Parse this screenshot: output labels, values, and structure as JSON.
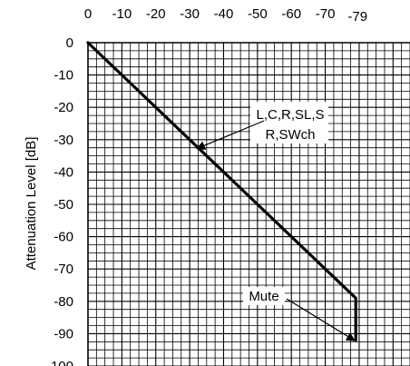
{
  "chart_data": {
    "type": "line",
    "title": "",
    "xlabel": "",
    "ylabel": "Attenuation Level [dB]",
    "x_ticks": [
      "0",
      "-10",
      "-20",
      "-30",
      "-40",
      "-50",
      "-60",
      "-70",
      "-79"
    ],
    "y_ticks": [
      "0",
      "-10",
      "-20",
      "-30",
      "-40",
      "-50",
      "-60",
      "-70",
      "-80",
      "-90",
      "-100"
    ],
    "xlim": [
      0,
      -95
    ],
    "ylim": [
      0,
      -100
    ],
    "grid": true,
    "series": [
      {
        "x": [
          0,
          -79,
          -79
        ],
        "y": [
          0,
          -79,
          -92
        ]
      }
    ],
    "annotations": [
      {
        "lines": [
          "L,C,R,SL,S",
          "R,SWch"
        ],
        "target": [
          -31,
          -31
        ]
      },
      {
        "lines": [
          "Mute"
        ],
        "target": [
          -79,
          -92
        ]
      }
    ]
  }
}
